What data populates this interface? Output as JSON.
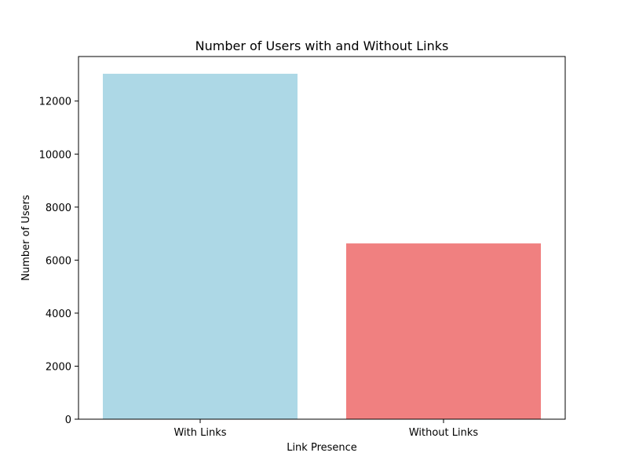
{
  "chart_data": {
    "type": "bar",
    "title": "Number of Users with and Without Links",
    "xlabel": "Link Presence",
    "ylabel": "Number of Users",
    "categories": [
      "With Links",
      "Without Links"
    ],
    "values": [
      13030,
      6630
    ],
    "colors": [
      "#add8e6",
      "#f08080"
    ],
    "ylim": [
      0,
      13680
    ],
    "yticks": [
      0,
      2000,
      4000,
      6000,
      8000,
      10000,
      12000
    ],
    "grid": false,
    "legend": "none"
  }
}
